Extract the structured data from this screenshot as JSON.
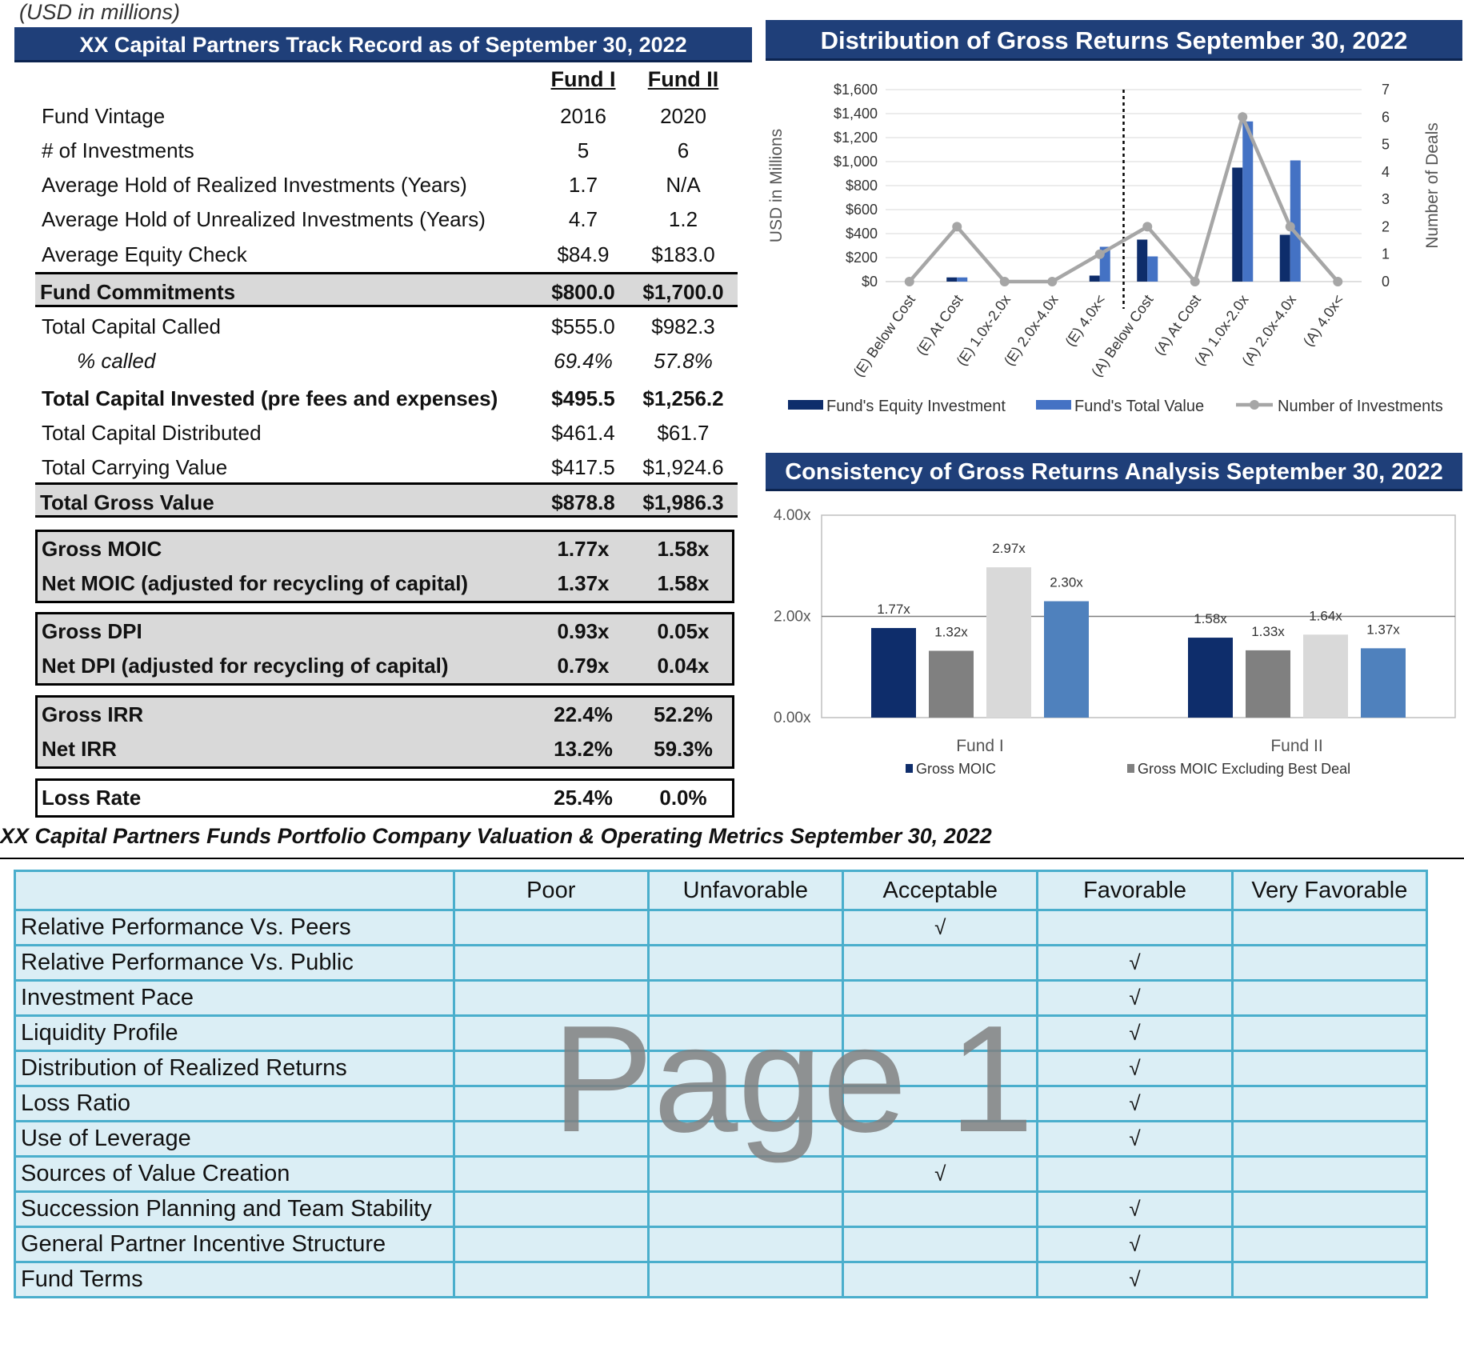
{
  "note": "(USD in millions)",
  "track_record": {
    "title": "XX Capital Partners Track Record as of September 30, 2022",
    "col1": "Fund I",
    "col2": "Fund II",
    "rows": [
      {
        "label": "Fund Vintage",
        "v1": "2016",
        "v2": "2020"
      },
      {
        "label": "# of Investments",
        "v1": "5",
        "v2": "6"
      },
      {
        "label": "Average Hold of Realized Investments (Years)",
        "v1": "1.7",
        "v2": "N/A"
      },
      {
        "label": "Average Hold of Unrealized Investments (Years)",
        "v1": "4.7",
        "v2": "1.2"
      },
      {
        "label": "Average Equity Check",
        "v1": "$84.9",
        "v2": "$183.0"
      },
      {
        "label": "Fund Commitments",
        "v1": "$800.0",
        "v2": "$1,700.0"
      },
      {
        "label": "Total Capital Called",
        "v1": "$555.0",
        "v2": "$982.3"
      },
      {
        "label": "% called",
        "v1": "69.4%",
        "v2": "57.8%"
      },
      {
        "label": "Total Capital Invested (pre fees and expenses)",
        "v1": "$495.5",
        "v2": "$1,256.2"
      },
      {
        "label": "Total Capital Distributed",
        "v1": "$461.4",
        "v2": "$61.7"
      },
      {
        "label": "Total Carrying Value",
        "v1": "$417.5",
        "v2": "$1,924.6"
      },
      {
        "label": "Total Gross Value",
        "v1": "$878.8",
        "v2": "$1,986.3"
      }
    ],
    "groups": [
      [
        {
          "label": "Gross MOIC",
          "v1": "1.77x",
          "v2": "1.58x"
        },
        {
          "label": "Net MOIC (adjusted for recycling of capital)",
          "v1": "1.37x",
          "v2": "1.58x"
        }
      ],
      [
        {
          "label": "Gross DPI",
          "v1": "0.93x",
          "v2": "0.05x"
        },
        {
          "label": "Net DPI (adjusted for recycling of capital)",
          "v1": "0.79x",
          "v2": "0.04x"
        }
      ],
      [
        {
          "label": "Gross IRR",
          "v1": "22.4%",
          "v2": "52.2%"
        },
        {
          "label": "Net IRR",
          "v1": "13.2%",
          "v2": "59.3%"
        }
      ],
      [
        {
          "label": "Loss Rate",
          "v1": "25.4%",
          "v2": "0.0%"
        }
      ]
    ]
  },
  "chart_data": [
    {
      "type": "bar",
      "title": "Distribution of Gross Returns September 30, 2022",
      "ylabel": "USD in Millions",
      "y2label": "Number of Deals",
      "ylim": [
        0,
        1600
      ],
      "y2lim": [
        0,
        7
      ],
      "yticks": [
        "$0",
        "$200",
        "$400",
        "$600",
        "$800",
        "$1,000",
        "$1,200",
        "$1,400",
        "$1,600"
      ],
      "y2ticks": [
        "0",
        "1",
        "2",
        "3",
        "4",
        "5",
        "6",
        "7"
      ],
      "categories": [
        "(E) Below Cost",
        "(E) At Cost",
        "(E) 1.0x-2.0x",
        "(E) 2.0x-4.0x",
        "(E) 4.0x<",
        "(A) Below Cost",
        "(A) At Cost",
        "(A) 1.0x-2.0x",
        "(A) 2.0x-4.0x",
        "(A) 4.0x<"
      ],
      "series": [
        {
          "name": "Fund's Equity Investment",
          "kind": "bar",
          "color": "#0e2d6b",
          "values": [
            0,
            35,
            0,
            0,
            50,
            350,
            0,
            950,
            390,
            0
          ]
        },
        {
          "name": "Fund's Total Value",
          "kind": "bar",
          "color": "#4472c4",
          "values": [
            0,
            35,
            0,
            0,
            290,
            210,
            0,
            1335,
            1010,
            0
          ]
        },
        {
          "name": "Number of Investments",
          "kind": "line",
          "axis": "right",
          "color": "#a6a6a6",
          "values": [
            0,
            2,
            0,
            0,
            1,
            2,
            0,
            6,
            2,
            0
          ]
        }
      ],
      "divider_after_index": 4,
      "legend": "bottom"
    },
    {
      "type": "bar",
      "title": "Consistency of Gross Returns Analysis September 30, 2022",
      "ylim": [
        0,
        4
      ],
      "yticks": [
        "0.00x",
        "2.00x",
        "4.00x"
      ],
      "categories": [
        "Fund I",
        "Fund II"
      ],
      "series": [
        {
          "name": "Gross MOIC",
          "color": "#0e2d6b",
          "values": [
            1.77,
            1.58
          ],
          "labels": [
            "1.77x",
            "1.58x"
          ]
        },
        {
          "name": "Gross MOIC Excluding Best Deal",
          "color": "#808080",
          "values": [
            1.32,
            1.33
          ],
          "labels": [
            "1.32x",
            "1.33x"
          ]
        },
        {
          "name": "",
          "color": "#d9d9d9",
          "values": [
            2.97,
            1.64
          ],
          "labels": [
            "2.97x",
            "1.64x"
          ]
        },
        {
          "name": "",
          "color": "#4f81bd",
          "values": [
            2.3,
            1.37
          ],
          "labels": [
            "2.30x",
            "1.37x"
          ]
        }
      ],
      "legend": "bottom"
    }
  ],
  "metrics": {
    "title": "XX Capital Partners Funds Portfolio Company Valuation & Operating Metrics September 30, 2022",
    "columns": [
      "Poor",
      "Unfavorable",
      "Acceptable",
      "Favorable",
      "Very Favorable"
    ],
    "check": "√",
    "rows": [
      {
        "label": "Relative Performance Vs. Peers",
        "rating": 2
      },
      {
        "label": "Relative Performance Vs. Public",
        "rating": 3
      },
      {
        "label": "Investment Pace",
        "rating": 3
      },
      {
        "label": "Liquidity Profile",
        "rating": 3
      },
      {
        "label": "Distribution of Realized Returns",
        "rating": 3
      },
      {
        "label": "Loss Ratio",
        "rating": 3
      },
      {
        "label": "Use of Leverage",
        "rating": 3
      },
      {
        "label": "Sources of Value Creation",
        "rating": 2
      },
      {
        "label": "Succession Planning and Team Stability",
        "rating": 3
      },
      {
        "label": "General Partner Incentive Structure",
        "rating": 3
      },
      {
        "label": "Fund Terms",
        "rating": 3
      }
    ]
  },
  "watermark": "Page 1"
}
